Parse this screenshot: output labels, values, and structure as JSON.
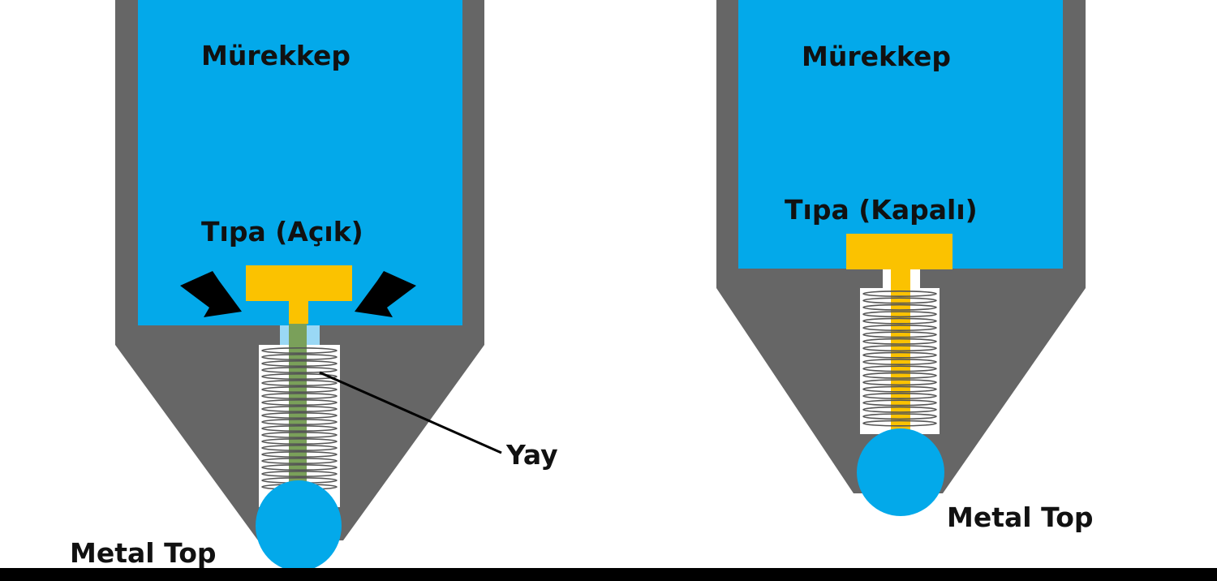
{
  "left_pen": {
    "ink_label": "Mürekkep",
    "valve_label": "Tıpa (Açık)",
    "spring_label": "Yay",
    "ball_label": "Metal Top",
    "state": "open"
  },
  "right_pen": {
    "ink_label": "Mürekkep",
    "valve_label": "Tıpa (Kapalı)",
    "ball_label": "Metal Top",
    "state": "closed"
  },
  "colors": {
    "ink": "#03a9ea",
    "casing": "#666666",
    "valve": "#fbc200",
    "spring_rod_open": "#7aa05a",
    "spring_coil": "#555555",
    "ball": "#03a9ea",
    "bottom_bar": "#000000",
    "arrow": "#000000"
  },
  "icons": {
    "arrows": "arrow-icon",
    "spring": "spring-icon"
  }
}
